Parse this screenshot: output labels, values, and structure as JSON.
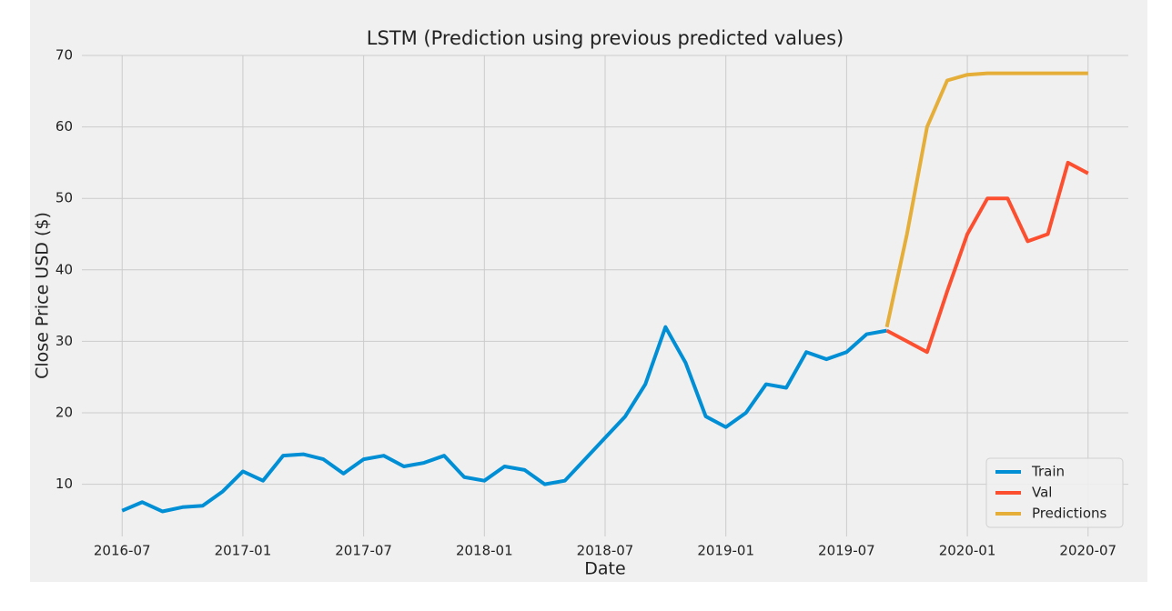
{
  "chart_data": {
    "type": "line",
    "title": "LSTM (Prediction using previous predicted values)",
    "x_label": "Date",
    "y_label": "Close Price USD ($)",
    "x": [
      "2016-07",
      "2016-08",
      "2016-09",
      "2016-10",
      "2016-11",
      "2016-12",
      "2017-01",
      "2017-02",
      "2017-03",
      "2017-04",
      "2017-05",
      "2017-06",
      "2017-07",
      "2017-08",
      "2017-09",
      "2017-10",
      "2017-11",
      "2017-12",
      "2018-01",
      "2018-02",
      "2018-03",
      "2018-04",
      "2018-05",
      "2018-06",
      "2018-07",
      "2018-08",
      "2018-09",
      "2018-10",
      "2018-11",
      "2018-12",
      "2019-01",
      "2019-02",
      "2019-03",
      "2019-04",
      "2019-05",
      "2019-06",
      "2019-07",
      "2019-08",
      "2019-09",
      "2019-10",
      "2019-11",
      "2019-12",
      "2020-01",
      "2020-02",
      "2020-03",
      "2020-04",
      "2020-05",
      "2020-06",
      "2020-07"
    ],
    "series": [
      {
        "name": "Train",
        "color": "#008fd5",
        "values": [
          6.3,
          7.5,
          6.2,
          6.8,
          7.0,
          9.0,
          11.8,
          10.5,
          14.0,
          14.2,
          13.5,
          11.5,
          13.5,
          14.0,
          12.5,
          13.0,
          14.0,
          11.0,
          10.5,
          12.5,
          12.0,
          10.0,
          10.5,
          13.5,
          16.5,
          19.5,
          24.0,
          32.0,
          27.0,
          19.5,
          18.0,
          20.0,
          24.0,
          23.5,
          28.5,
          27.5,
          28.5,
          31.0,
          31.5,
          null,
          null,
          null,
          null,
          null,
          null,
          null,
          null,
          null,
          null
        ]
      },
      {
        "name": "Val",
        "color": "#fc4f30",
        "values": [
          null,
          null,
          null,
          null,
          null,
          null,
          null,
          null,
          null,
          null,
          null,
          null,
          null,
          null,
          null,
          null,
          null,
          null,
          null,
          null,
          null,
          null,
          null,
          null,
          null,
          null,
          null,
          null,
          null,
          null,
          null,
          null,
          null,
          null,
          null,
          null,
          null,
          null,
          31.5,
          30.0,
          28.5,
          37.0,
          45.0,
          50.0,
          50.0,
          44.0,
          45.0,
          55.0,
          53.5
        ]
      },
      {
        "name": "Predictions",
        "color": "#e5ae38",
        "values": [
          null,
          null,
          null,
          null,
          null,
          null,
          null,
          null,
          null,
          null,
          null,
          null,
          null,
          null,
          null,
          null,
          null,
          null,
          null,
          null,
          null,
          null,
          null,
          null,
          null,
          null,
          null,
          null,
          null,
          null,
          null,
          null,
          null,
          null,
          null,
          null,
          null,
          null,
          32.0,
          45.0,
          60.0,
          66.5,
          67.3,
          67.5,
          67.5,
          67.5,
          67.5,
          67.5,
          67.5
        ]
      }
    ],
    "xlim": [
      "2016-05",
      "2020-09"
    ],
    "xticks": [
      "2016-07",
      "2017-01",
      "2017-07",
      "2018-01",
      "2018-07",
      "2019-01",
      "2019-07",
      "2020-01",
      "2020-07"
    ],
    "ylim": [
      2.7,
      70
    ],
    "yticks": [
      10,
      20,
      30,
      40,
      50,
      60,
      70
    ],
    "grid": true,
    "legend": "lower right"
  }
}
